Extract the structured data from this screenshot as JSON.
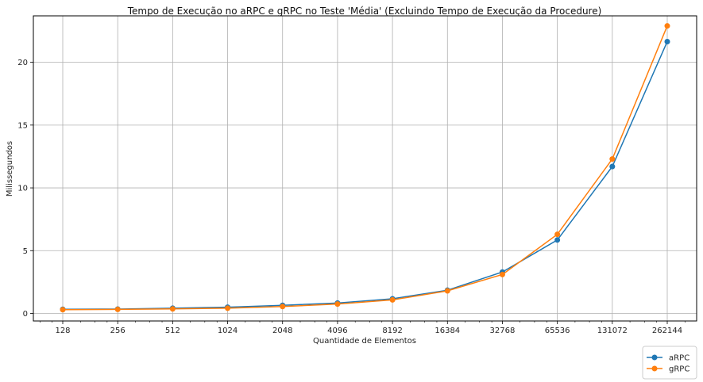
{
  "chart_data": {
    "type": "line",
    "title": "Tempo de Execução no aRPC e gRPC no Teste 'Média' (Excluindo Tempo de Execução da Procedure)",
    "xlabel": "Quantidade de Elementos",
    "ylabel": "Milissegundos",
    "x_scale": "log2",
    "x": [
      128,
      256,
      512,
      1024,
      2048,
      4096,
      8192,
      16384,
      32768,
      65536,
      131072,
      262144
    ],
    "x_tick_labels": [
      "128",
      "256",
      "512",
      "1024",
      "2048",
      "4096",
      "8192",
      "16384",
      "32768",
      "65536",
      "131072",
      "262144"
    ],
    "ylim": [
      -0.6,
      23.7
    ],
    "y_ticks": [
      0,
      5,
      10,
      15,
      20
    ],
    "y_tick_labels": [
      "0",
      "5",
      "10",
      "15",
      "20"
    ],
    "grid": true,
    "legend_position": "bottom-right",
    "series": [
      {
        "name": "aRPC",
        "color": "#1f77b4",
        "marker": "circle",
        "values": [
          0.33,
          0.35,
          0.42,
          0.5,
          0.65,
          0.83,
          1.17,
          1.85,
          3.3,
          5.85,
          11.7,
          21.65
        ]
      },
      {
        "name": "gRPC",
        "color": "#ff7f0e",
        "marker": "circle",
        "values": [
          0.3,
          0.32,
          0.36,
          0.42,
          0.55,
          0.75,
          1.08,
          1.8,
          3.1,
          6.3,
          12.3,
          22.9
        ]
      }
    ]
  }
}
